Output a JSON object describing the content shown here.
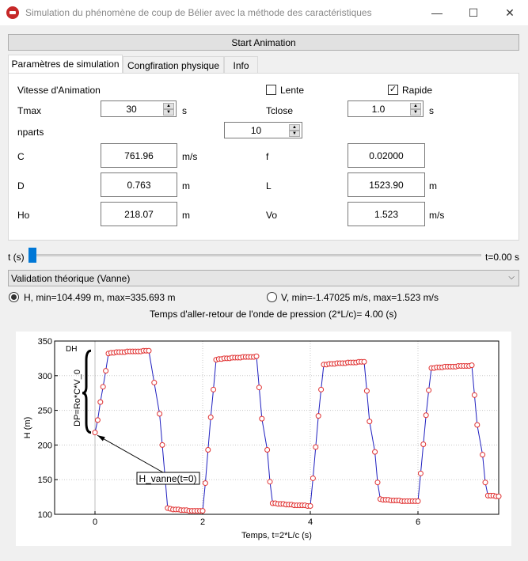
{
  "window": {
    "title": "Simulation du phénomène de coup de Bélier avec la méthode des caractéristiques",
    "minimize": "—",
    "maximize": "☐",
    "close": "✕"
  },
  "start_button": "Start Animation",
  "tabs": [
    {
      "label": "Paramètres de simulation"
    },
    {
      "label": "Congfiration physique"
    },
    {
      "label": "Info"
    }
  ],
  "params": {
    "vitesse_label": "Vitesse d'Animation",
    "lente_label": "Lente",
    "lente_checked": false,
    "rapide_label": "Rapide",
    "rapide_checked": true,
    "tmax_label": "Tmax",
    "tmax_value": "30",
    "tmax_unit": "s",
    "tclose_label": "Tclose",
    "tclose_value": "1.0",
    "tclose_unit": "s",
    "nparts_label": "nparts",
    "nparts_value": "10",
    "c_label": "C",
    "c_value": "761.96",
    "c_unit": "m/s",
    "f_label": "f",
    "f_value": "0.02000",
    "d_label": "D",
    "d_value": "0.763",
    "d_unit": "m",
    "l_label": "L",
    "l_value": "1523.90",
    "l_unit": "m",
    "ho_label": "Ho",
    "ho_value": "218.07",
    "ho_unit": "m",
    "vo_label": "Vo",
    "vo_value": "1.523",
    "vo_unit": "m/s"
  },
  "slider": {
    "label": "t (s)",
    "value_text": "t=0.00 s",
    "fraction": 0.0
  },
  "combo": {
    "selected": "Validation théorique (Vanne)"
  },
  "radios": [
    {
      "label": "H, min=104.499 m, max=335.693 m",
      "selected": true
    },
    {
      "label": "V, min=-1.47025 m/s, max=1.523 m/s",
      "selected": false
    }
  ],
  "info_text": "Temps d'aller-retour de l'onde de pression (2*L/c)= 4.00 (s)",
  "chart_data": {
    "type": "line",
    "title": "",
    "xlabel": "Temps, t=2*L/c (s)",
    "ylabel": "H (m)",
    "xlim": [
      -0.75,
      7.5
    ],
    "ylim": [
      100,
      350
    ],
    "xticks": [
      0,
      2,
      4,
      6
    ],
    "xtick_labels": [
      "0",
      "2",
      "4",
      "6"
    ],
    "yticks": [
      100,
      150,
      200,
      250,
      300,
      350
    ],
    "ytick_labels": [
      "100",
      "150",
      "200",
      "250",
      "300",
      "350"
    ],
    "grid": true,
    "line_color": "#1f1fbf",
    "marker_color": "#e03030",
    "annotations": {
      "dh": "DH",
      "dp": "DP=Ro*C*V_0",
      "arrow_label": "H_vanne(t=0)"
    },
    "series": [
      {
        "x": [
          0,
          0.05,
          0.1,
          0.15,
          0.2,
          0.25,
          0.3,
          0.35,
          0.4,
          0.45,
          0.5,
          0.55,
          0.6,
          0.65,
          0.7,
          0.75,
          0.8,
          0.85,
          0.9,
          0.95,
          1.0,
          1.1,
          1.2,
          1.25,
          1.3,
          1.35,
          1.4,
          1.45,
          1.5,
          1.55,
          1.6,
          1.65,
          1.7,
          1.75,
          1.8,
          1.85,
          1.9,
          1.95,
          2.0,
          2.05,
          2.1,
          2.15,
          2.2,
          2.25,
          2.3,
          2.35,
          2.4,
          2.45,
          2.5,
          2.55,
          2.6,
          2.65,
          2.7,
          2.75,
          2.8,
          2.85,
          2.9,
          2.95,
          3.0,
          3.05,
          3.1,
          3.2,
          3.25,
          3.3,
          3.35,
          3.4,
          3.45,
          3.5,
          3.55,
          3.6,
          3.65,
          3.7,
          3.75,
          3.8,
          3.85,
          3.9,
          3.95,
          4.0,
          4.05,
          4.1,
          4.15,
          4.2,
          4.25,
          4.3,
          4.35,
          4.4,
          4.45,
          4.5,
          4.55,
          4.6,
          4.65,
          4.7,
          4.75,
          4.8,
          4.85,
          4.9,
          4.95,
          5.0,
          5.05,
          5.1,
          5.2,
          5.25,
          5.3,
          5.35,
          5.4,
          5.45,
          5.5,
          5.55,
          5.6,
          5.65,
          5.7,
          5.75,
          5.8,
          5.85,
          5.9,
          5.95,
          6.0,
          6.05,
          6.1,
          6.15,
          6.2,
          6.25,
          6.3,
          6.35,
          6.4,
          6.45,
          6.5,
          6.55,
          6.6,
          6.65,
          6.7,
          6.75,
          6.8,
          6.85,
          6.9,
          6.95,
          7.0,
          7.05,
          7.1,
          7.2,
          7.25,
          7.3,
          7.35,
          7.4,
          7.45,
          7.5
        ],
        "y": [
          218,
          236,
          262,
          284,
          307,
          332,
          333,
          333,
          334,
          334,
          334,
          334,
          335,
          335,
          335,
          335,
          335,
          335,
          336,
          336,
          336,
          290,
          245,
          200,
          155,
          109,
          108,
          107,
          107,
          107,
          106,
          106,
          106,
          105,
          105,
          105,
          105,
          105,
          105,
          145,
          193,
          240,
          280,
          323,
          324,
          324,
          325,
          325,
          325,
          326,
          326,
          326,
          326,
          327,
          327,
          327,
          327,
          327,
          328,
          283,
          238,
          193,
          147,
          116,
          116,
          115,
          115,
          115,
          114,
          114,
          114,
          113,
          113,
          113,
          113,
          113,
          112,
          112,
          152,
          197,
          242,
          280,
          316,
          316,
          317,
          317,
          317,
          318,
          318,
          318,
          318,
          319,
          319,
          319,
          319,
          320,
          320,
          320,
          278,
          234,
          190,
          146,
          122,
          121,
          121,
          121,
          120,
          120,
          120,
          120,
          119,
          119,
          119,
          119,
          119,
          119,
          119,
          159,
          201,
          243,
          279,
          311,
          311,
          312,
          312,
          312,
          313,
          313,
          313,
          313,
          313,
          314,
          314,
          314,
          314,
          314,
          315,
          272,
          229,
          186,
          146,
          127,
          127,
          127,
          126,
          126
        ]
      }
    ]
  }
}
